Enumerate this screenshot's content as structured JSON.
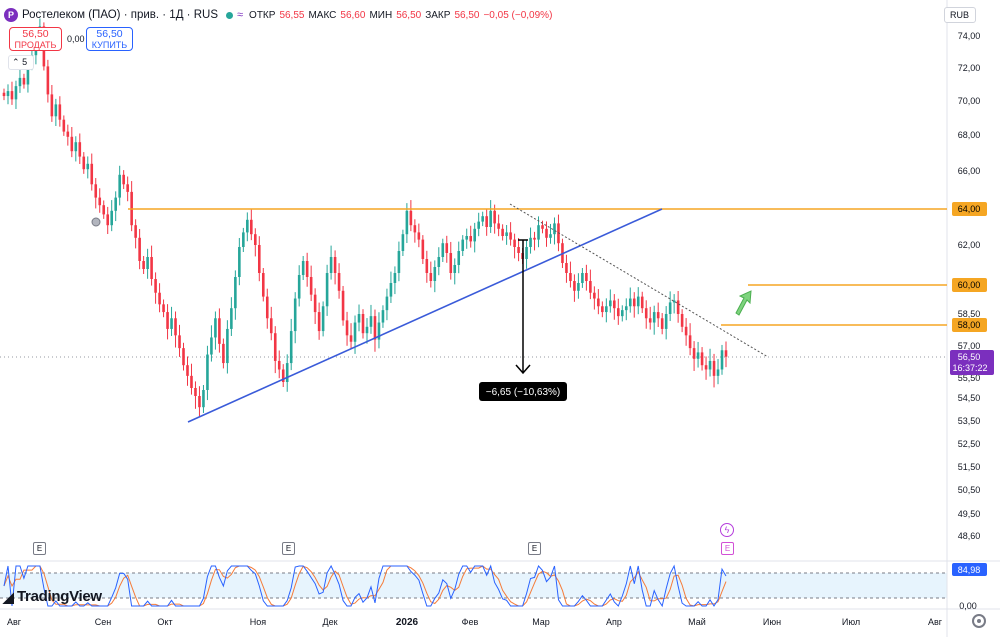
{
  "header": {
    "symbol": "Ростелеком (ПАО) · прив. · 1Д · RUS",
    "logo": "P",
    "open_label": "ОТКР",
    "open": "56,55",
    "high_label": "МАКС",
    "high": "56,60",
    "low_label": "МИН",
    "low": "56,50",
    "close_label": "ЗАКР",
    "close": "56,50",
    "change": "−0,05 (−0,09%)",
    "icons": [
      "live-dot",
      "approx-icon"
    ]
  },
  "trade": {
    "sell_price": "56,50",
    "sell_label": "ПРОДАТЬ",
    "spread": "0,00",
    "buy_price": "56,50",
    "buy_label": "КУПИТЬ"
  },
  "collapse_count": "5",
  "currency": "RUB",
  "watermark": "TradingView",
  "colors": {
    "up": "#26a69a",
    "down": "#f23645",
    "level": "#f5a623",
    "trend": "#3a5bd9",
    "stoch_k": "#2962ff",
    "stoch_d": "#f57c3a",
    "price_tag": "#7b2fbe"
  },
  "chart_data": {
    "type": "candlestick",
    "ylim": [
      48.6,
      75
    ],
    "price_axis_ticks": [
      "74,00",
      "72,00",
      "70,00",
      "68,00",
      "66,00",
      "64,00",
      "62,00",
      "60,00",
      "58,50",
      "57,00",
      "55,50",
      "54,50",
      "53,50",
      "52,50",
      "51,50",
      "50,50",
      "49,50",
      "48,60"
    ],
    "time_axis_labels": [
      "Авг",
      "Сен",
      "Окт",
      "Ноя",
      "Дек",
      "2026",
      "Фев",
      "Мар",
      "Апр",
      "Май",
      "Июн",
      "Июл",
      "Авг"
    ],
    "close_series": [
      70.3,
      70.6,
      70.1,
      70.9,
      71.4,
      71.0,
      72.2,
      72.8,
      73.5,
      74.6,
      72.1,
      70.4,
      69.1,
      69.8,
      68.9,
      68.2,
      67.9,
      67.1,
      67.6,
      66.8,
      66.1,
      66.4,
      65.3,
      64.6,
      64.2,
      63.7,
      63.1,
      63.9,
      64.6,
      65.8,
      65.3,
      64.9,
      63.1,
      62.4,
      61.2,
      60.8,
      61.4,
      60.3,
      59.6,
      59.0,
      58.6,
      57.8,
      58.3,
      57.5,
      56.9,
      56.1,
      55.6,
      55.0,
      54.6,
      54.1,
      54.9,
      56.6,
      57.4,
      58.3,
      57.1,
      56.2,
      57.8,
      58.8,
      60.4,
      61.9,
      62.7,
      63.4,
      62.6,
      62.0,
      60.6,
      59.4,
      58.3,
      57.6,
      56.3,
      55.9,
      55.3,
      56.2,
      57.7,
      59.3,
      60.5,
      61.2,
      60.4,
      59.5,
      58.6,
      57.7,
      58.9,
      60.6,
      61.4,
      60.6,
      59.7,
      58.2,
      57.5,
      57.2,
      58.1,
      58.5,
      57.6,
      57.9,
      58.4,
      57.3,
      58.1,
      58.7,
      59.4,
      60.1,
      60.6,
      61.7,
      62.6,
      63.9,
      63.1,
      62.7,
      62.3,
      61.3,
      60.6,
      60.2,
      60.9,
      61.4,
      62.1,
      61.6,
      60.6,
      61.0,
      61.7,
      62.3,
      62.5,
      62.2,
      62.9,
      63.3,
      63.6,
      63.0,
      63.9,
      63.2,
      62.9,
      62.5,
      62.7,
      62.3,
      61.9,
      61.6,
      61.3,
      61.9,
      62.4,
      62.3,
      63.1,
      62.9,
      62.4,
      62.6,
      63.2,
      62.1,
      61.1,
      60.6,
      60.2,
      59.7,
      60.1,
      60.6,
      60.2,
      59.6,
      59.3,
      58.9,
      58.6,
      58.9,
      59.2,
      58.8,
      58.4,
      58.7,
      58.9,
      59.3,
      58.9,
      59.4,
      58.8,
      58.3,
      58.1,
      58.6,
      58.3,
      57.8,
      58.5,
      59.1,
      59.2,
      58.5,
      57.9,
      57.5,
      56.9,
      56.4,
      56.7,
      56.1,
      55.9,
      56.3,
      55.6,
      55.9,
      56.8,
      56.5
    ],
    "levels": [
      {
        "price": 64.0,
        "label": "64,00"
      },
      {
        "price": 60.0,
        "label": "60,00"
      },
      {
        "price": 58.0,
        "label": "58,00"
      }
    ],
    "last_price": {
      "label": "56,50",
      "countdown": "16:37:22"
    },
    "measure_label": "−6,65 (−10,63%)",
    "stochastic": {
      "value_label": "84,98",
      "axis_tick": "0,00"
    }
  }
}
